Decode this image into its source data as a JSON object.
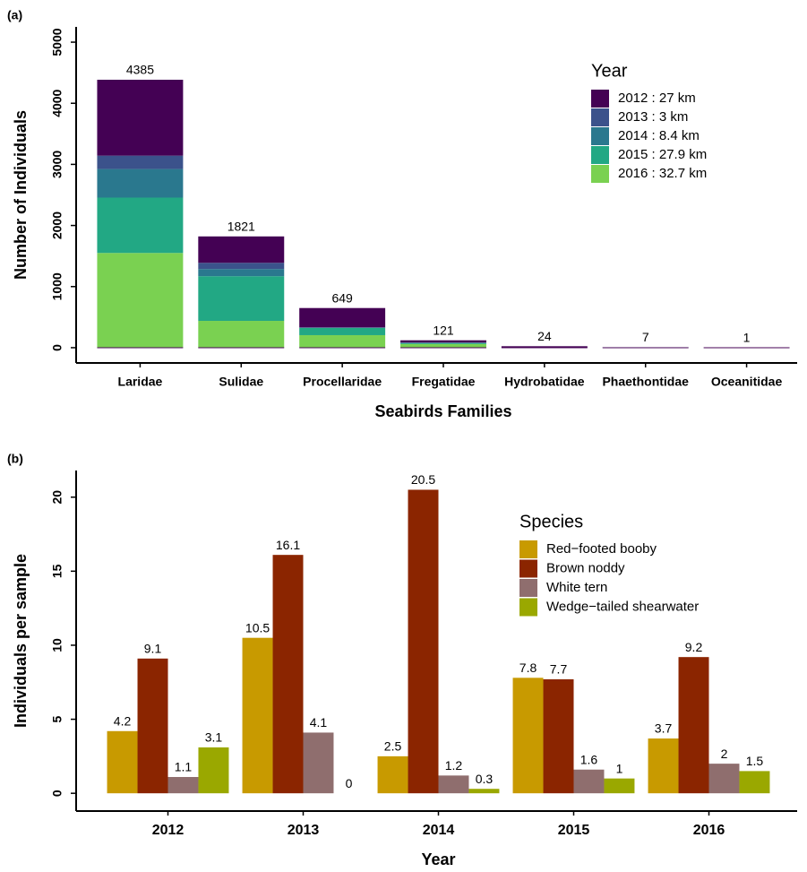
{
  "chart_data": [
    {
      "type": "stacked_bar",
      "panel": "(a)",
      "x_label": "Seabirds Families",
      "y_label": "Number of Individuals",
      "legend_title": "Year",
      "categories": [
        "Laridae",
        "Sulidae",
        "Procellaridae",
        "Fregatidae",
        "Hydrobatidae",
        "Phaethontidae",
        "Oceanitidae"
      ],
      "totals": [
        4385,
        1821,
        649,
        121,
        24,
        7,
        1
      ],
      "series": [
        {
          "name": "2012 : 27  km",
          "color": "#440154",
          "values": [
            1242,
            432,
            317,
            36,
            24,
            0,
            1
          ]
        },
        {
          "name": "2013 : 3  km",
          "color": "#3b528b",
          "values": [
            219,
            102,
            5,
            5,
            0,
            0,
            0
          ]
        },
        {
          "name": "2014 : 8.4  km",
          "color": "#2a788e",
          "values": [
            468,
            117,
            5,
            5,
            0,
            7,
            0
          ]
        },
        {
          "name": "2015 : 27.9  km",
          "color": "#22a884",
          "values": [
            906,
            731,
            117,
            15,
            0,
            0,
            0
          ]
        },
        {
          "name": "2016 : 32.7  km",
          "color": "#7ad151",
          "values": [
            1550,
            439,
            205,
            60,
            0,
            0,
            0
          ]
        }
      ],
      "ylim": [
        -250,
        5250
      ],
      "yticks": [
        0,
        1000,
        2000,
        3000,
        4000,
        5000
      ]
    },
    {
      "type": "bar",
      "panel": "(b)",
      "x_label": "Year",
      "y_label": "Individuals per sample",
      "legend_title": "Species",
      "categories": [
        "2012",
        "2013",
        "2014",
        "2015",
        "2016"
      ],
      "series": [
        {
          "name": "Red−footed booby",
          "color": "#c89a00",
          "values": [
            4.2,
            10.5,
            2.5,
            7.8,
            3.7
          ]
        },
        {
          "name": "Brown noddy",
          "color": "#8b2500",
          "values": [
            9.1,
            16.1,
            20.5,
            7.7,
            9.2
          ]
        },
        {
          "name": "White tern",
          "color": "#8f6e6e",
          "values": [
            1.1,
            4.1,
            1.2,
            1.6,
            2
          ]
        },
        {
          "name": "Wedge−tailed shearwater",
          "color": "#9aa800",
          "values": [
            3.1,
            0,
            0.3,
            1,
            1.5
          ]
        }
      ],
      "ylim": [
        -1.2,
        21.8
      ],
      "yticks": [
        0,
        5,
        10,
        15,
        20
      ]
    }
  ]
}
